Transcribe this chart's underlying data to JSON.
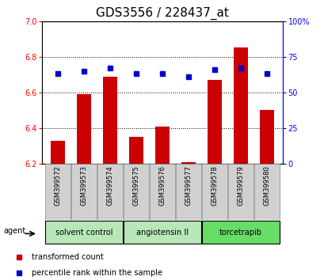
{
  "title": "GDS3556 / 228437_at",
  "samples": [
    "GSM399572",
    "GSM399573",
    "GSM399574",
    "GSM399575",
    "GSM399576",
    "GSM399577",
    "GSM399578",
    "GSM399579",
    "GSM399580"
  ],
  "transformed_counts": [
    6.33,
    6.59,
    6.69,
    6.35,
    6.41,
    6.21,
    6.67,
    6.85,
    6.5
  ],
  "percentile_ranks": [
    63,
    65,
    67,
    63,
    63,
    61,
    66,
    67,
    63
  ],
  "ylim_left": [
    6.2,
    7.0
  ],
  "ylim_right": [
    0,
    100
  ],
  "yticks_left": [
    6.2,
    6.4,
    6.6,
    6.8,
    7.0
  ],
  "yticks_right": [
    0,
    25,
    50,
    75,
    100
  ],
  "bar_color": "#cc0000",
  "dot_color": "#0000cc",
  "bar_bottom": 6.2,
  "group_defs": [
    {
      "label": "solvent control",
      "start": 0,
      "end": 2,
      "color": "#b8e8b8"
    },
    {
      "label": "angiotensin II",
      "start": 3,
      "end": 5,
      "color": "#b8e8b8"
    },
    {
      "label": "torcetrapib",
      "start": 6,
      "end": 8,
      "color": "#66dd66"
    }
  ],
  "legend_items": [
    {
      "label": "transformed count",
      "color": "#cc0000"
    },
    {
      "label": "percentile rank within the sample",
      "color": "#0000cc"
    }
  ],
  "title_fontsize": 11,
  "tick_label_fontsize": 7,
  "sample_label_fontsize": 6,
  "group_label_fontsize": 7,
  "legend_fontsize": 7
}
